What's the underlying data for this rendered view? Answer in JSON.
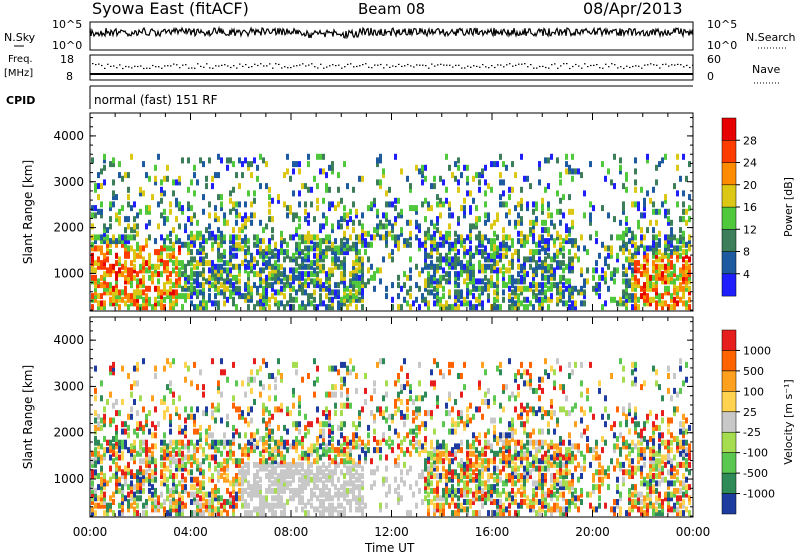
{
  "header": {
    "title": "Syowa East (fitACF)",
    "beam": "Beam 08",
    "date": "08/Apr/2013"
  },
  "panels": {
    "nsky": {
      "label": "N.Sky",
      "ticks": [
        "10^5",
        "10^0"
      ],
      "right_label": "N.Search",
      "right_ticks": [
        "10^5",
        "10^0"
      ]
    },
    "freq": {
      "label_line1": "Freq.",
      "label_line2": "[MHz]",
      "ticks": [
        "18",
        "8"
      ],
      "right_label": "Nave",
      "right_ticks": [
        "60",
        "0"
      ]
    },
    "cpid": {
      "label": "CPID",
      "value": "normal (fast) 151 RF"
    }
  },
  "chart_data": [
    {
      "type": "heatmap",
      "name": "power",
      "ylabel": "Slant Range [km]",
      "ylim": [
        180,
        4500
      ],
      "yticks": [
        "1000",
        "2000",
        "3000",
        "4000"
      ],
      "colorbar": {
        "label": "Power [dB]",
        "ticks": [
          "4",
          "8",
          "12",
          "16",
          "20",
          "24",
          "28"
        ],
        "colors": [
          "#1e1eff",
          "#1e5aa0",
          "#3c7d5a",
          "#50c83c",
          "#dcc814",
          "#ff8c00",
          "#ff3c00",
          "#e60000"
        ]
      }
    },
    {
      "type": "heatmap",
      "name": "velocity",
      "ylabel": "Slant Range [km]",
      "ylim": [
        180,
        4500
      ],
      "yticks": [
        "1000",
        "2000",
        "3000",
        "4000"
      ],
      "xticks": [
        "00:00",
        "04:00",
        "08:00",
        "12:00",
        "16:00",
        "20:00",
        "00:00"
      ],
      "xlabel": "Time UT",
      "colorbar": {
        "label": "Velocity [m s⁻¹]",
        "ticks": [
          "1000",
          "500",
          "100",
          "25",
          "-25",
          "-100",
          "-500",
          "-1000"
        ],
        "colors": [
          "#1e3ca0",
          "#2e8b57",
          "#5ac850",
          "#a5dc50",
          "#c8c8c8",
          "#ffd250",
          "#ffa01e",
          "#ff6400",
          "#e61e1e"
        ]
      }
    }
  ]
}
